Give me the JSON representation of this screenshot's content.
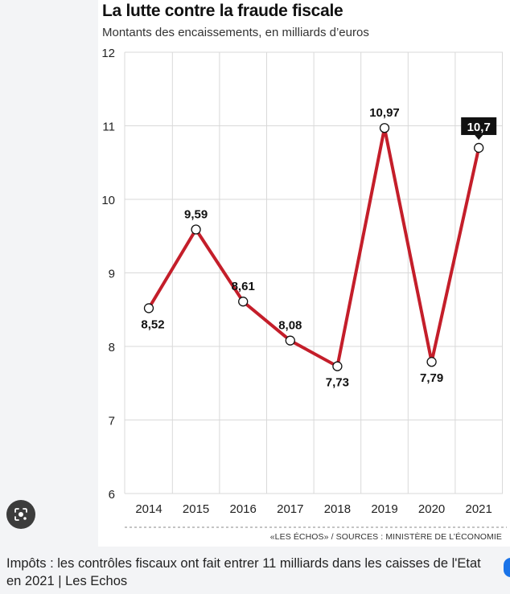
{
  "header": {
    "title": "La lutte contre la fraude fiscale",
    "subtitle": "Montants des encaissements, en milliards d’euros"
  },
  "source_note": "«LES ÉCHOS» / SOURCES : MINISTÈRE DE L’ÉCONOMIE",
  "caption": "Impôts : les contrôles fiscaux ont fait entrer 11 milliards dans les caisses de l'Etat en 2021 | Les Echos",
  "icons": {
    "lens_button": "lens-search-icon"
  },
  "colors": {
    "line": "#c41e2a",
    "highlight_label_bg": "#111111",
    "grid": "#d9d9d9"
  },
  "chart_data": {
    "type": "line",
    "x": [
      "2014",
      "2015",
      "2016",
      "2017",
      "2018",
      "2019",
      "2020",
      "2021"
    ],
    "series": [
      {
        "values": [
          8.52,
          9.59,
          8.61,
          8.08,
          7.73,
          10.97,
          7.79,
          10.7
        ],
        "labels": [
          "8,52",
          "9,59",
          "8,61",
          "8,08",
          "7,73",
          "10,97",
          "7,79",
          "10,7"
        ]
      }
    ],
    "label_position": [
      "below",
      "above",
      "above",
      "above",
      "below",
      "above",
      "below",
      "above"
    ],
    "highlight_index": 7,
    "ylim": [
      6,
      12
    ],
    "yticks": [
      6,
      7,
      8,
      9,
      10,
      11,
      12
    ],
    "grid": "vertical and horizontal",
    "xlabel": "",
    "ylabel": ""
  }
}
